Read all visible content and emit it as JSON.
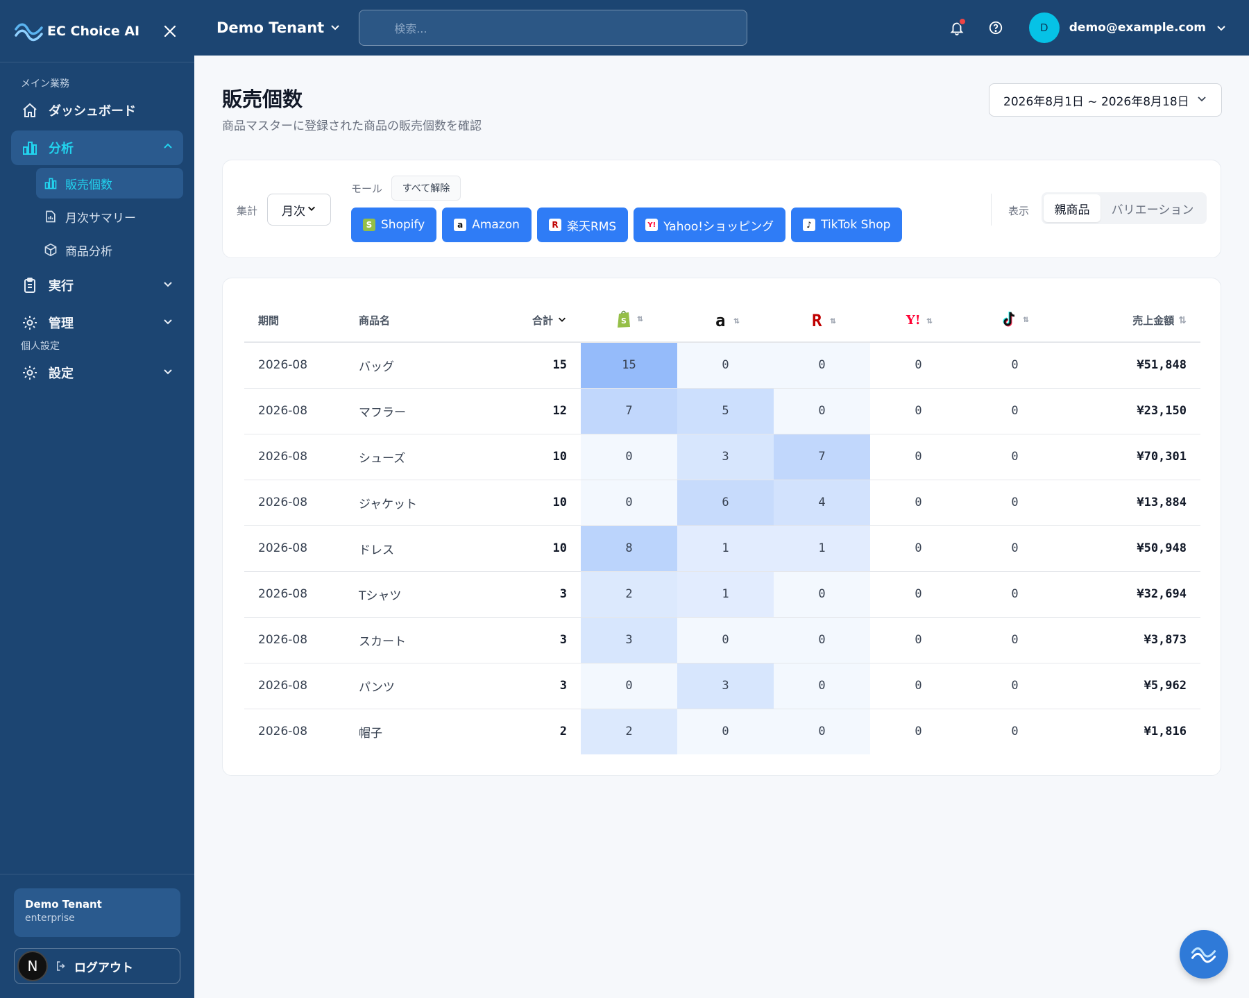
{
  "brand": {
    "name": "EC Choice AI"
  },
  "sidebar": {
    "section_main": "メイン業務",
    "dashboard": "ダッシュボード",
    "analysis": "分析",
    "sub_items": [
      "販売個数",
      "月次サマリー",
      "商品分析"
    ],
    "execute": "実行",
    "manage": "管理",
    "personal": "個人設定",
    "settings": "設定",
    "tenant_name": "Demo Tenant",
    "tenant_plan": "enterprise",
    "logout": "ログアウト",
    "avatar_letter": "N"
  },
  "header": {
    "tenant": "Demo Tenant",
    "search_placeholder": "検索...",
    "user_initial": "D",
    "user_email": "demo@example.com"
  },
  "page": {
    "title": "販売個数",
    "subtitle": "商品マスターに登録された商品の販売個数を確認",
    "date_range": "2026年8月1日 ~ 2026年8月18日"
  },
  "filters": {
    "agg_label": "集計",
    "agg_value": "月次",
    "mall_label": "モール",
    "clear_all": "すべて解除",
    "malls": [
      "Shopify",
      "Amazon",
      "楽天RMS",
      "Yahoo!ショッピング",
      "TikTok Shop"
    ],
    "view_label": "表示",
    "view_parent": "親商品",
    "view_variation": "バリエーション"
  },
  "table": {
    "headers": {
      "period": "期間",
      "name": "商品名",
      "total": "合計",
      "amount": "売上金額"
    },
    "rows": [
      {
        "period": "2026-08",
        "name": "バッグ",
        "total": "15",
        "shopify": "15",
        "amazon": "0",
        "rakuten": "0",
        "yahoo": "0",
        "tiktok": "0",
        "amount": "¥51,848"
      },
      {
        "period": "2026-08",
        "name": "マフラー",
        "total": "12",
        "shopify": "7",
        "amazon": "5",
        "rakuten": "0",
        "yahoo": "0",
        "tiktok": "0",
        "amount": "¥23,150"
      },
      {
        "period": "2026-08",
        "name": "シューズ",
        "total": "10",
        "shopify": "0",
        "amazon": "3",
        "rakuten": "7",
        "yahoo": "0",
        "tiktok": "0",
        "amount": "¥70,301"
      },
      {
        "period": "2026-08",
        "name": "ジャケット",
        "total": "10",
        "shopify": "0",
        "amazon": "6",
        "rakuten": "4",
        "yahoo": "0",
        "tiktok": "0",
        "amount": "¥13,884"
      },
      {
        "period": "2026-08",
        "name": "ドレス",
        "total": "10",
        "shopify": "8",
        "amazon": "1",
        "rakuten": "1",
        "yahoo": "0",
        "tiktok": "0",
        "amount": "¥50,948"
      },
      {
        "period": "2026-08",
        "name": "Tシャツ",
        "total": "3",
        "shopify": "2",
        "amazon": "1",
        "rakuten": "0",
        "yahoo": "0",
        "tiktok": "0",
        "amount": "¥32,694"
      },
      {
        "period": "2026-08",
        "name": "スカート",
        "total": "3",
        "shopify": "3",
        "amazon": "0",
        "rakuten": "0",
        "yahoo": "0",
        "tiktok": "0",
        "amount": "¥3,873"
      },
      {
        "period": "2026-08",
        "name": "パンツ",
        "total": "3",
        "shopify": "0",
        "amazon": "3",
        "rakuten": "0",
        "yahoo": "0",
        "tiktok": "0",
        "amount": "¥5,962"
      },
      {
        "period": "2026-08",
        "name": "帽子",
        "total": "2",
        "shopify": "2",
        "amazon": "0",
        "rakuten": "0",
        "yahoo": "0",
        "tiktok": "0",
        "amount": "¥1,816"
      }
    ]
  },
  "colors": {
    "sidebar_bg": "#1c4572",
    "accent_cyan": "#22d3ee",
    "mall_button": "#2f7cf6",
    "heat_base": "#3b82f6"
  }
}
